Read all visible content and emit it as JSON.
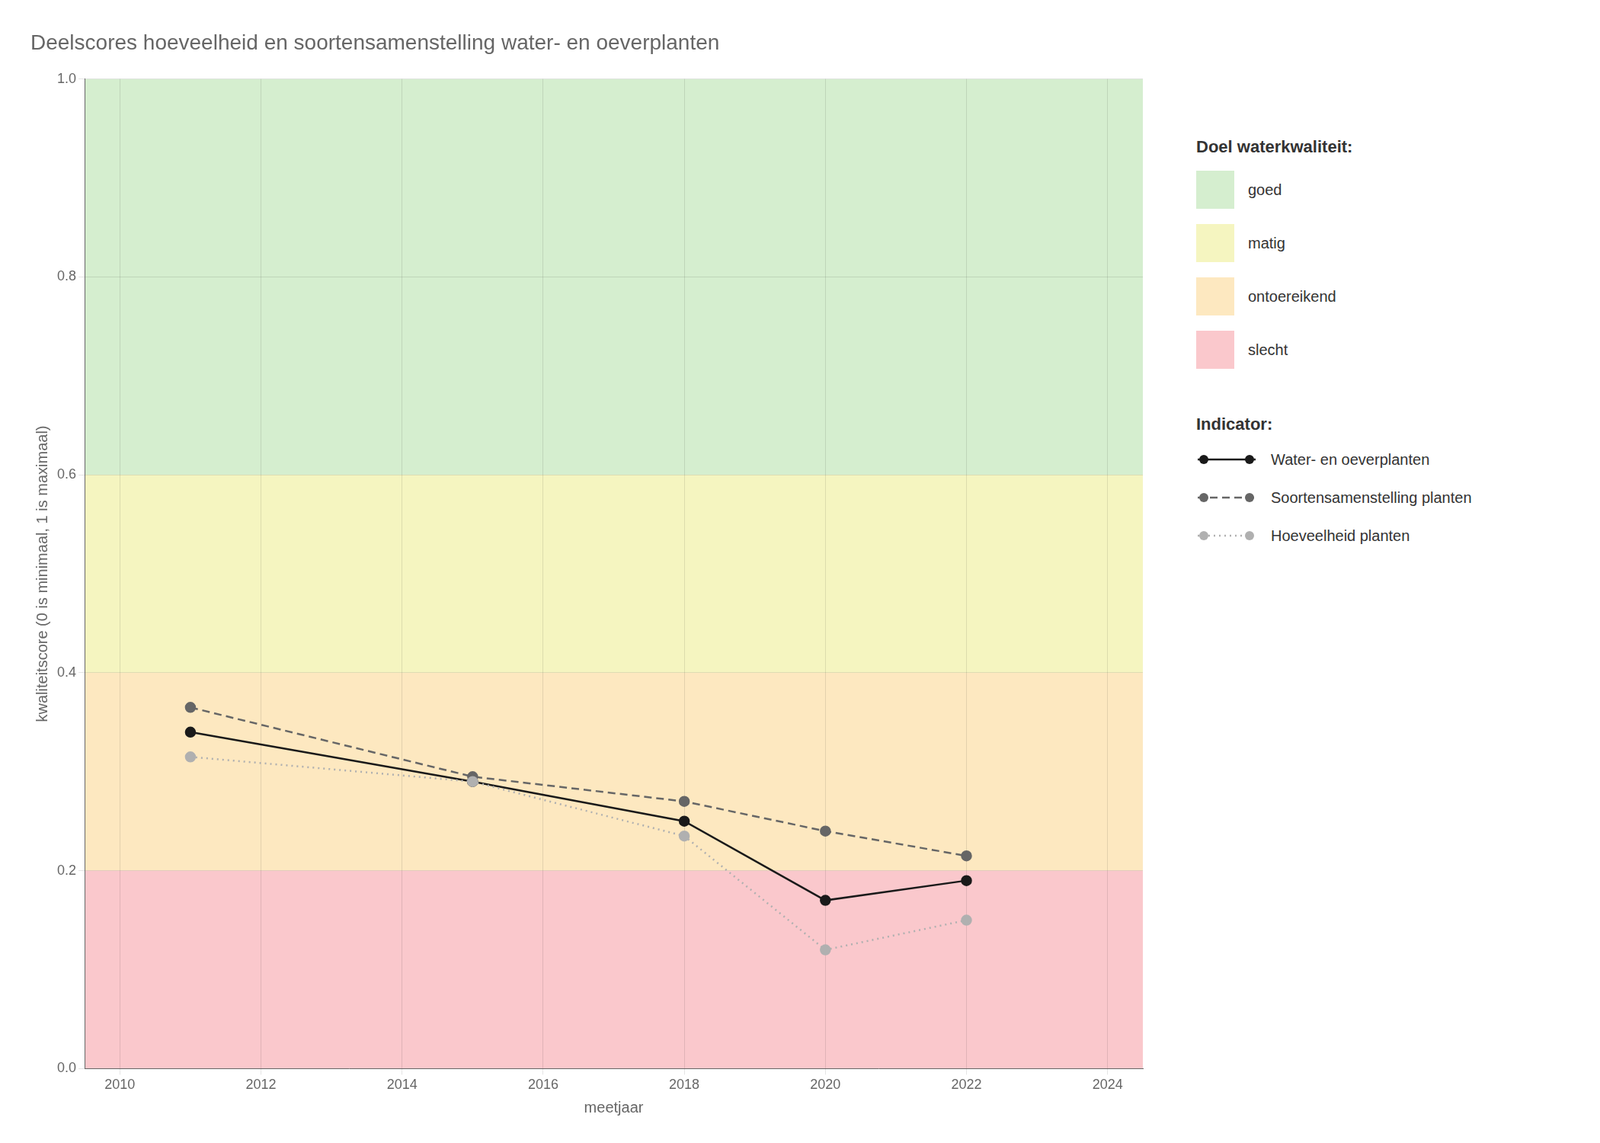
{
  "chart_data": {
    "type": "line",
    "title": "Deelscores hoeveelheid en soortensamenstelling water- en oeverplanten",
    "x_label": "meetjaar",
    "y_label": "kwaliteitscore (0 is minimaal, 1 is maximaal)",
    "x": [
      2011,
      2015,
      2018,
      2020,
      2022
    ],
    "xlim": [
      2009.5,
      2024.5
    ],
    "xticks": [
      2010,
      2012,
      2014,
      2016,
      2018,
      2020,
      2022,
      2024
    ],
    "ylim": [
      0.0,
      1.0
    ],
    "yticks": [
      {
        "value": 0,
        "label": "0.0"
      },
      0.2,
      0.4,
      0.6,
      0.8,
      {
        "value": 1,
        "label": "1.0"
      }
    ],
    "grid": true,
    "legend": "right",
    "legend_titles": [
      "Doel waterkwaliteit:",
      "Indicator:"
    ],
    "bands": [
      {
        "name": "goed",
        "color": "#d5eecf",
        "ymin": 0.6,
        "ymax": 1.0
      },
      {
        "name": "matig",
        "color": "#f5f5c0",
        "ymin": 0.4,
        "ymax": 0.6
      },
      {
        "name": "ontoereikend",
        "color": "#fde8c0",
        "ymin": 0.2,
        "ymax": 0.4
      },
      {
        "name": "slecht",
        "color": "#fac8cc",
        "ymin": 0.0,
        "ymax": 0.2
      }
    ],
    "series": [
      {
        "name": "Hoeveelheid planten",
        "color": "#b0b0b0",
        "line_style": "dotted",
        "marker": "o",
        "values": [
          0.315,
          0.29,
          0.235,
          0.12,
          0.15
        ]
      },
      {
        "name": "Soortensamenstelling planten",
        "color": "#666666",
        "line_style": "dashed",
        "marker": "o",
        "values": [
          0.365,
          0.295,
          0.27,
          0.24,
          0.215
        ]
      },
      {
        "name": "Water- en oeverplanten",
        "color": "#1a1a1a",
        "line_style": "solid",
        "marker": "o",
        "values": [
          0.34,
          0.29,
          0.25,
          0.17,
          0.19
        ]
      }
    ]
  }
}
